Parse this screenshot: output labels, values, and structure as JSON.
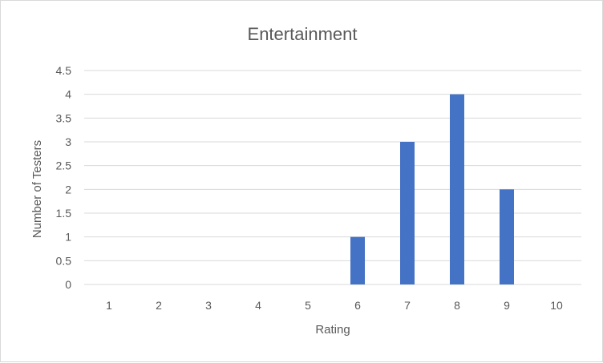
{
  "chart_data": {
    "type": "bar",
    "title": "Entertainment",
    "xlabel": "Rating",
    "ylabel": "Number of Testers",
    "categories": [
      "1",
      "2",
      "3",
      "4",
      "5",
      "6",
      "7",
      "8",
      "9",
      "10"
    ],
    "values": [
      0,
      0,
      0,
      0,
      0,
      1,
      3,
      4,
      2,
      0
    ],
    "ylim": [
      0,
      4.5
    ],
    "yticks": [
      "0",
      "0.5",
      "1",
      "1.5",
      "2",
      "2.5",
      "3",
      "3.5",
      "4",
      "4.5"
    ],
    "grid": true,
    "legend": "none",
    "colors": {
      "bar": "#4472c4",
      "grid": "#d9d9d9",
      "text": "#595959"
    }
  }
}
